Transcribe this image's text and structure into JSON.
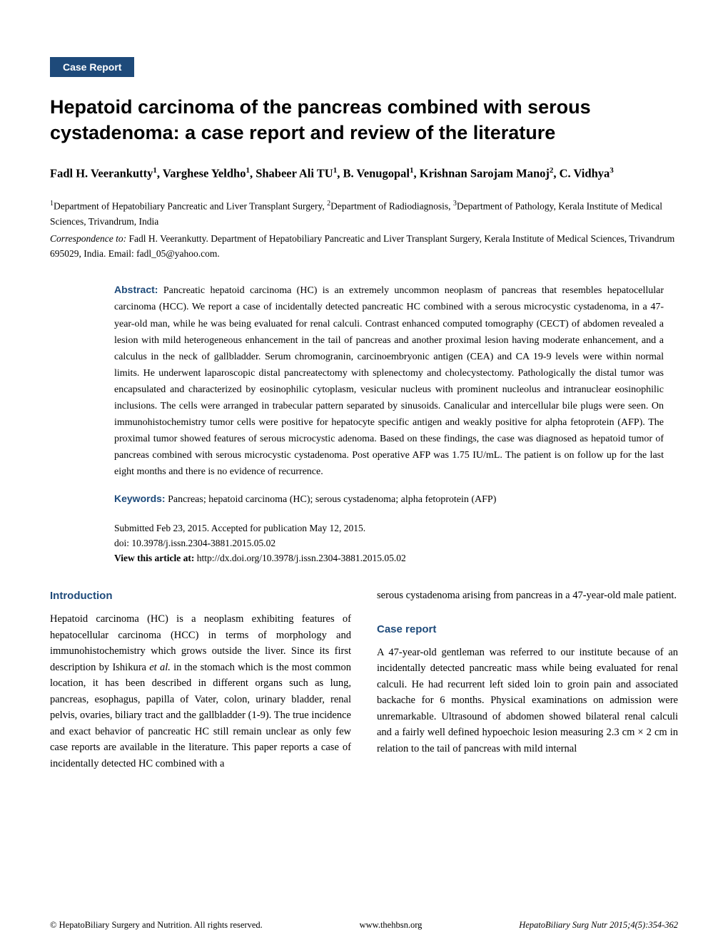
{
  "badge": "Case Report",
  "title": "Hepatoid carcinoma of the pancreas combined with serous cystadenoma: a case report and review of the literature",
  "authors_html": "Fadl H. Veerankutty<sup>1</sup>, Varghese Yeldho<sup>1</sup>, Shabeer Ali TU<sup>1</sup>, B. Venugopal<sup>1</sup>, Krishnan Sarojam Manoj<sup>2</sup>, C. Vidhya<sup>3</sup>",
  "affiliations_html": "<sup>1</sup>Department of Hepatobiliary Pancreatic and Liver Transplant Surgery, <sup>2</sup>Department of Radiodiagnosis, <sup>3</sup>Department of Pathology, Kerala Institute of Medical Sciences, Trivandrum, India",
  "correspondence_label": "Correspondence to:",
  "correspondence_text": " Fadl H. Veerankutty. Department of Hepatobiliary Pancreatic and Liver Transplant Surgery, Kerala Institute of Medical Sciences, Trivandrum 695029, India. Email: fadl_05@yahoo.com.",
  "abstract_label": "Abstract:",
  "abstract_text": " Pancreatic hepatoid carcinoma (HC) is an extremely uncommon neoplasm of pancreas that resembles hepatocellular carcinoma (HCC). We report a case of incidentally detected pancreatic HC combined with a serous microcystic cystadenoma, in a 47-year-old man, while he was being evaluated for renal calculi. Contrast enhanced computed tomography (CECT) of abdomen revealed a lesion with mild heterogeneous enhancement in the tail of pancreas and another proximal lesion having moderate enhancement, and a calculus in the neck of gallbladder. Serum chromogranin, carcinoembryonic antigen (CEA) and CA 19-9 levels were within normal limits. He underwent laparoscopic distal pancreatectomy with splenectomy and cholecystectomy. Pathologically the distal tumor was encapsulated and characterized by eosinophilic cytoplasm, vesicular nucleus with prominent nucleolus and intranuclear eosinophilic inclusions. The cells were arranged in trabecular pattern separated by sinusoids. Canalicular and intercellular bile plugs were seen. On immunohistochemistry tumor cells were positive for hepatocyte specific antigen and weakly positive for alpha fetoprotein (AFP). The proximal tumor showed features of serous microcystic adenoma. Based on these findings, the case was diagnosed as hepatoid tumor of pancreas combined with serous microcystic cystadenoma. Post operative AFP was 1.75 IU/mL. The patient is on follow up for the last eight months and there is no evidence of recurrence.",
  "keywords_label": "Keywords:",
  "keywords_text": " Pancreas; hepatoid carcinoma (HC); serous cystadenoma; alpha fetoprotein (AFP)",
  "submitted": "Submitted Feb 23, 2015. Accepted for publication May 12, 2015.",
  "doi": "doi: 10.3978/j.issn.2304-3881.2015.05.02",
  "view_label": "View this article at:",
  "view_url": " http://dx.doi.org/10.3978/j.issn.2304-3881.2015.05.02",
  "intro_heading": "Introduction",
  "intro_text_html": "Hepatoid carcinoma (HC) is a neoplasm exhibiting features of hepatocellular carcinoma (HCC) in terms of morphology and immunohistochemistry which grows outside the liver. Since its first description by Ishikura <span class=\"italic\">et al.</span> in the stomach which is the most common location, it has been described in different organs such as lung, pancreas, esophagus, papilla of Vater, colon, urinary bladder, renal pelvis, ovaries, biliary tract and the gallbladder (1-9). The true incidence and exact behavior of pancreatic HC still remain unclear as only few case reports are available in the literature. This paper reports a case of incidentally detected HC combined with a",
  "col2_top": "serous cystadenoma arising from pancreas in a 47-year-old male patient.",
  "case_heading": "Case report",
  "case_text": "A 47-year-old gentleman was referred to our institute because of an incidentally detected pancreatic mass while being evaluated for renal calculi. He had recurrent left sided loin to groin pain and associated backache for 6 months. Physical examinations on admission were unremarkable. Ultrasound of abdomen showed bilateral renal calculi and a fairly well defined hypoechoic lesion measuring 2.3 cm × 2 cm in relation to the tail of pancreas with mild internal",
  "footer_left": "© HepatoBiliary Surgery and Nutrition. All rights reserved.",
  "footer_mid": "www.thehbsn.org",
  "footer_right": "HepatoBiliary Surg Nutr 2015;4(5):354-362",
  "colors": {
    "brand": "#1e4a7a",
    "text": "#000000",
    "background": "#ffffff"
  },
  "typography": {
    "title_fontsize": 27,
    "body_fontsize": 14.5,
    "abstract_fontsize": 14,
    "footer_fontsize": 12.5
  }
}
